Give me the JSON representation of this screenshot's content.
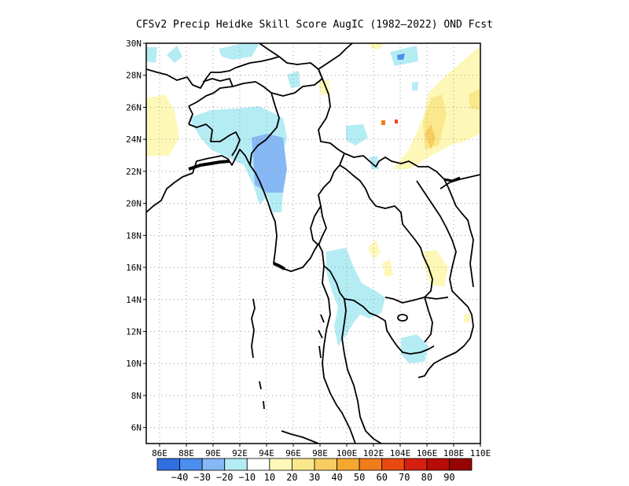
{
  "title": "CFSv2 Precip Heidke Skill Score AugIC (1982–2022) OND Fcst",
  "y_ticks": [
    "30N",
    "28N",
    "26N",
    "24N",
    "22N",
    "20N",
    "18N",
    "16N",
    "14N",
    "12N",
    "10N",
    "8N",
    "6N"
  ],
  "x_ticks": [
    "86E",
    "88E",
    "90E",
    "92E",
    "94E",
    "96E",
    "98E",
    "100E",
    "102E",
    "104E",
    "106E",
    "108E",
    "110E"
  ],
  "colorbar": {
    "labels": [
      "−40",
      "−30",
      "−20",
      "−10",
      "10",
      "20",
      "30",
      "40",
      "50",
      "60",
      "70",
      "80",
      "90"
    ],
    "colors": [
      "#2f6fe0",
      "#4a8ef0",
      "#86b8f5",
      "#b4ecf4",
      "#ffffff",
      "#fef8b8",
      "#fbe88c",
      "#f7cc60",
      "#f5a830",
      "#f07c1a",
      "#e84a10",
      "#d42010",
      "#b80c08",
      "#960404"
    ]
  },
  "map": {
    "lon_range": [
      85,
      110
    ],
    "lat_range": [
      5,
      30
    ],
    "grid": true,
    "region": "Myanmar, Thailand, Laos, Cambodia, Bangladesh and surrounding areas"
  }
}
